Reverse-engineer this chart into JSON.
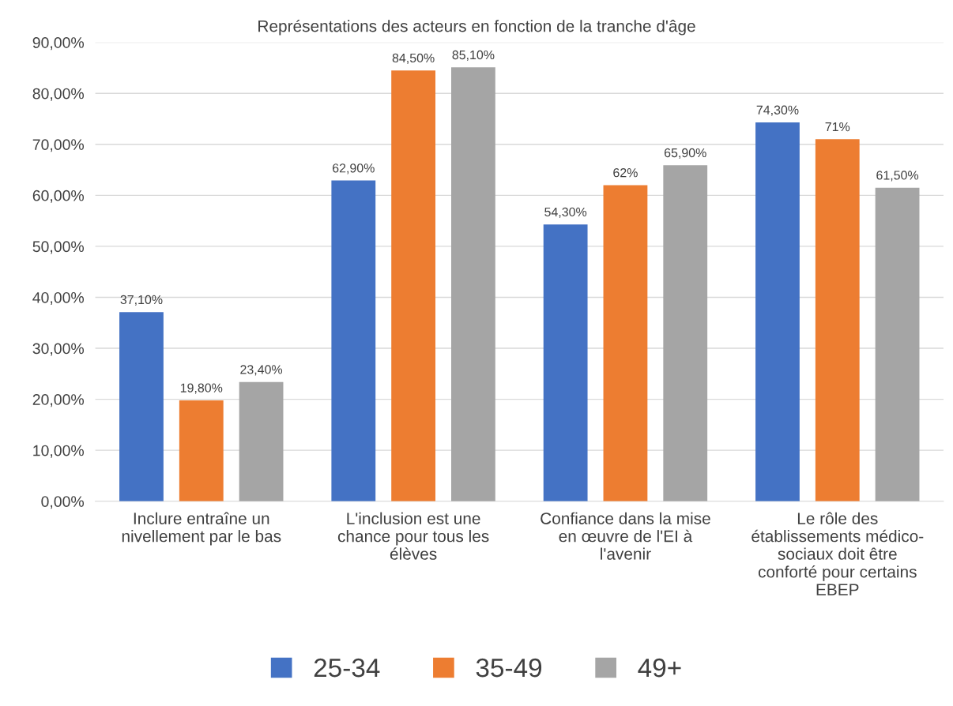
{
  "chart_data": {
    "type": "bar",
    "title": "Représentations des acteurs en fonction de la tranche d'âge",
    "categories": [
      "Inclure entraîne un\nnivellement par le bas",
      "L'inclusion est une\nchance pour tous les\nélèves",
      "Confiance dans la mise\nen œuvre de l'EI à\nl'avenir",
      "Le rôle des\nétablissements médico-\nsociaux doit être\nconforté pour certains\nEBEP"
    ],
    "series": [
      {
        "name": "25-34",
        "color": "#4472c4",
        "values": [
          37.1,
          62.9,
          54.3,
          74.3
        ],
        "value_labels": [
          "37,10%",
          "62,90%",
          "54,30%",
          "74,30%"
        ]
      },
      {
        "name": "35-49",
        "color": "#ed7d31",
        "values": [
          19.8,
          84.5,
          62,
          71
        ],
        "value_labels": [
          "19,80%",
          "84,50%",
          "62%",
          "71%"
        ]
      },
      {
        "name": "49+",
        "color": "#a5a5a5",
        "values": [
          23.4,
          85.1,
          65.9,
          61.5
        ],
        "value_labels": [
          "23,40%",
          "85,10%",
          "65,90%",
          "61,50%"
        ]
      }
    ],
    "ylim": [
      0,
      90
    ],
    "yticks": [
      {
        "value": 0,
        "label": "0,00%"
      },
      {
        "value": 10,
        "label": "10,00%"
      },
      {
        "value": 20,
        "label": "20,00%"
      },
      {
        "value": 30,
        "label": "30,00%"
      },
      {
        "value": 40,
        "label": "40,00%"
      },
      {
        "value": 50,
        "label": "50,00%"
      },
      {
        "value": 60,
        "label": "60,00%"
      },
      {
        "value": 70,
        "label": "70,00%"
      },
      {
        "value": 80,
        "label": "80,00%"
      },
      {
        "value": 90,
        "label": "90,00%"
      }
    ],
    "grid": "y",
    "legend": "bottom"
  }
}
